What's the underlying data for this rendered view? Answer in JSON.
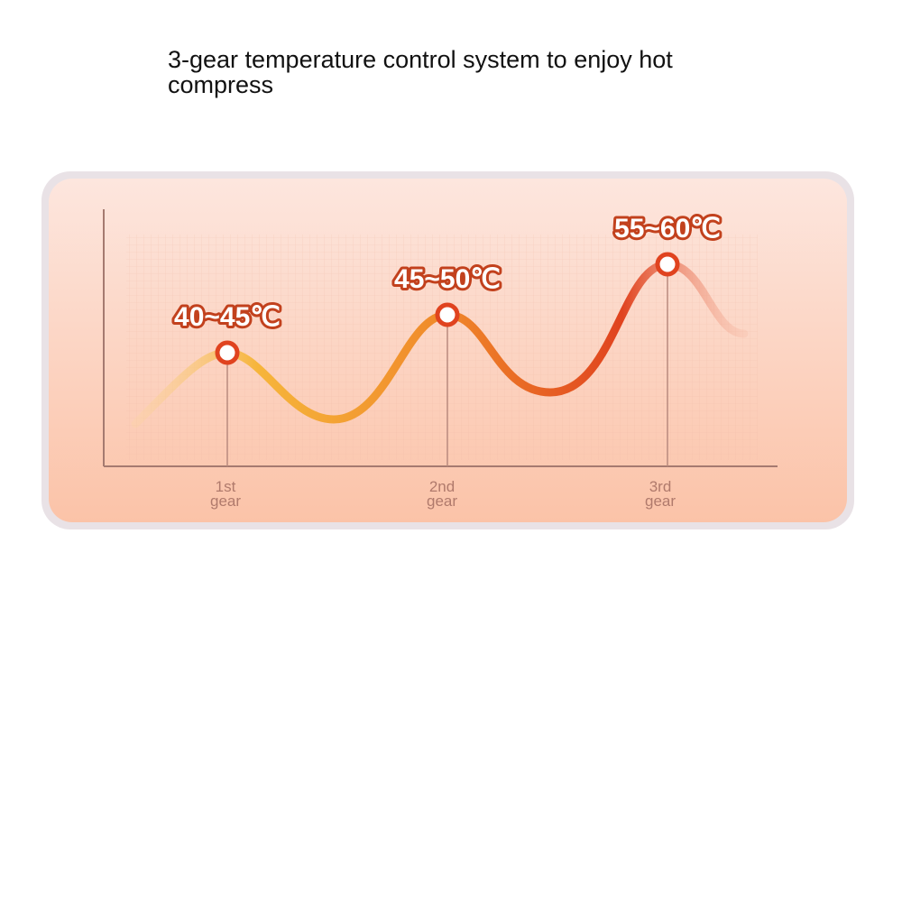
{
  "title": "3-gear temperature control system to enjoy hot compress",
  "gears": [
    {
      "temperature": "40~45℃",
      "label": [
        "1st",
        "gear"
      ]
    },
    {
      "temperature": "45~50℃",
      "label": [
        "2nd",
        "gear"
      ]
    },
    {
      "temperature": "55~60℃",
      "label": [
        "3rd",
        "gear"
      ]
    }
  ]
}
